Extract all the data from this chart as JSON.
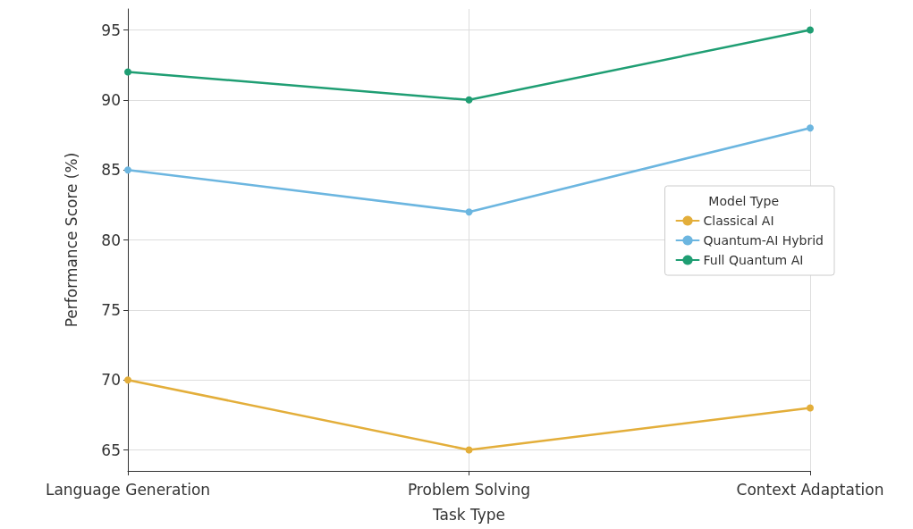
{
  "chart_data": {
    "type": "line",
    "xlabel": "Task Type",
    "ylabel": "Performance Score (%)",
    "legend_title": "Model Type",
    "categories": [
      "Language Generation",
      "Problem Solving",
      "Context Adaptation"
    ],
    "series": [
      {
        "name": "Classical AI",
        "color": "#e3ae3a",
        "values": [
          70,
          65,
          68
        ]
      },
      {
        "name": "Quantum-AI Hybrid",
        "color": "#6cb6e0",
        "values": [
          85,
          82,
          88
        ]
      },
      {
        "name": "Full Quantum AI",
        "color": "#1f9e73",
        "values": [
          92,
          90,
          95
        ]
      }
    ],
    "ylim": [
      63.5,
      96.5
    ],
    "yticks": [
      65,
      70,
      75,
      80,
      85,
      90,
      95
    ],
    "grid": true,
    "legend": "right",
    "marker": "circle",
    "line_style": "solid"
  }
}
